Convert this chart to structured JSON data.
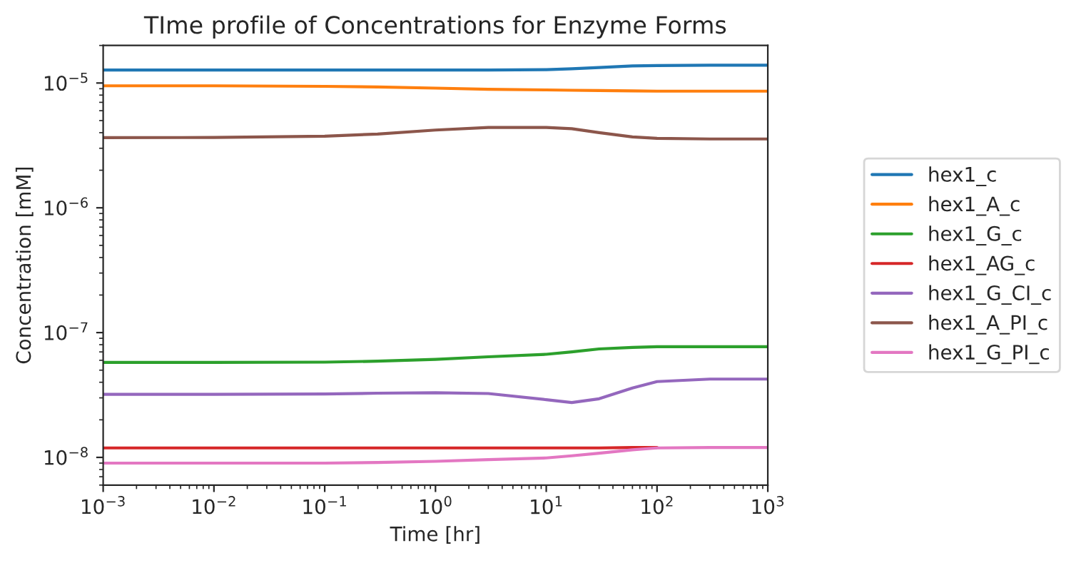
{
  "chart_data": {
    "type": "line",
    "title": "TIme profile of Concentrations for Enzyme Forms",
    "xlabel": "Time [hr]",
    "ylabel": "Concentration [mM]",
    "x": [
      0.001,
      0.01,
      0.1,
      0.3,
      1,
      3,
      10,
      17,
      30,
      60,
      100,
      300,
      1000
    ],
    "series": [
      {
        "name": "hex1_c",
        "color": "#1f77b4",
        "values": [
          1.27e-05,
          1.27e-05,
          1.27e-05,
          1.27e-05,
          1.27e-05,
          1.27e-05,
          1.28e-05,
          1.3e-05,
          1.33e-05,
          1.37e-05,
          1.38e-05,
          1.39e-05,
          1.39e-05
        ]
      },
      {
        "name": "hex1_A_c",
        "color": "#ff7f0e",
        "values": [
          9.5e-06,
          9.5e-06,
          9.4e-06,
          9.3e-06,
          9.1e-06,
          8.9e-06,
          8.8e-06,
          8.75e-06,
          8.7e-06,
          8.65e-06,
          8.6e-06,
          8.6e-06,
          8.6e-06
        ]
      },
      {
        "name": "hex1_G_c",
        "color": "#2ca02c",
        "values": [
          5.77e-08,
          5.77e-08,
          5.8e-08,
          5.9e-08,
          6.1e-08,
          6.4e-08,
          6.7e-08,
          7e-08,
          7.4e-08,
          7.6e-08,
          7.7e-08,
          7.7e-08,
          7.7e-08
        ]
      },
      {
        "name": "hex1_AG_c",
        "color": "#d62728",
        "values": [
          1.19e-08,
          1.19e-08,
          1.19e-08,
          1.19e-08,
          1.19e-08,
          1.19e-08,
          1.19e-08,
          1.19e-08,
          1.19e-08,
          1.2e-08,
          1.2e-08,
          null,
          null
        ]
      },
      {
        "name": "hex1_G_CI_c",
        "color": "#9467bd",
        "values": [
          3.2e-08,
          3.2e-08,
          3.22e-08,
          3.27e-08,
          3.3e-08,
          3.25e-08,
          2.9e-08,
          2.75e-08,
          2.95e-08,
          3.6e-08,
          4.05e-08,
          4.24e-08,
          4.24e-08
        ]
      },
      {
        "name": "hex1_A_PI_c",
        "color": "#8c564b",
        "values": [
          3.65e-06,
          3.66e-06,
          3.75e-06,
          3.9e-06,
          4.2e-06,
          4.4e-06,
          4.4e-06,
          4.3e-06,
          4e-06,
          3.7e-06,
          3.6e-06,
          3.56e-06,
          3.56e-06
        ]
      },
      {
        "name": "hex1_G_PI_c",
        "color": "#e377c2",
        "values": [
          9e-09,
          9e-09,
          9e-09,
          9.1e-09,
          9.3e-09,
          9.6e-09,
          9.9e-09,
          1.03e-08,
          1.08e-08,
          1.15e-08,
          1.19e-08,
          1.2e-08,
          1.2e-08
        ]
      }
    ],
    "log": "xy",
    "xlim": [
      0.001,
      1000
    ],
    "ylim": [
      6e-09,
      2e-05
    ],
    "xticks": [
      {
        "value": 0.001,
        "label": "10$^{−3}$"
      },
      {
        "value": 0.01,
        "label": "10$^{−2}$"
      },
      {
        "value": 0.1,
        "label": "10$^{−1}$"
      },
      {
        "value": 1,
        "label": "10$^{0}$"
      },
      {
        "value": 10,
        "label": "10$^{1}$"
      },
      {
        "value": 100,
        "label": "10$^{2}$"
      },
      {
        "value": 1000,
        "label": "10$^{3}$"
      }
    ],
    "yticks": [
      {
        "value": 1e-08,
        "label": "10$^{−8}$"
      },
      {
        "value": 1e-07,
        "label": "10$^{−7}$"
      },
      {
        "value": 1e-06,
        "label": "10$^{−6}$"
      },
      {
        "value": 1e-05,
        "label": "10$^{−5}$"
      }
    ],
    "legend": "right",
    "grid": false,
    "line_style": "solid",
    "marker": "none"
  }
}
